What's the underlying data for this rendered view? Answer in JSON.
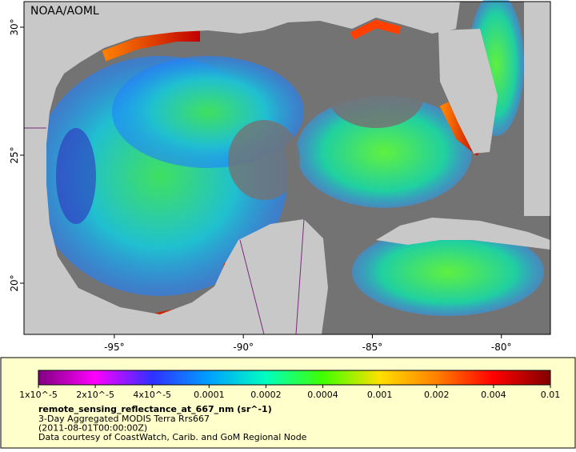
{
  "map": {
    "credit": "NOAA/AOML",
    "xlim": [
      -98.5,
      -78.1
    ],
    "ylim": [
      18,
      31
    ],
    "xticks": [
      {
        "value": -95,
        "label": "-95°"
      },
      {
        "value": -90,
        "label": "-90°"
      },
      {
        "value": -85,
        "label": "-85°"
      },
      {
        "value": -80,
        "label": "-80°"
      }
    ],
    "yticks": [
      {
        "value": 20,
        "label": "20°"
      },
      {
        "value": 25,
        "label": "25°"
      },
      {
        "value": 30,
        "label": "30°"
      }
    ],
    "colorbar": {
      "colors": [
        "#800080",
        "#ff00ff",
        "#3030ff",
        "#00a0ff",
        "#00ffc0",
        "#40ff00",
        "#ffe000",
        "#ff8000",
        "#ff0000",
        "#800000"
      ],
      "labels": [
        "1x10^-5",
        "2x10^-5",
        "4x10^-5",
        "0.0001",
        "0.0002",
        "0.0004",
        "0.001",
        "0.002",
        "0.004",
        "0.01"
      ]
    },
    "legend": {
      "variable": "remote_sensing_reflectance_at_667_nm (sr^-1)",
      "lines": [
        "3-Day Aggregated MODIS Terra Rrs667",
        "(2011-08-01T00:00:00Z)",
        "Data courtesy of CoastWatch, Carib. and GoM Regional Node"
      ]
    }
  }
}
